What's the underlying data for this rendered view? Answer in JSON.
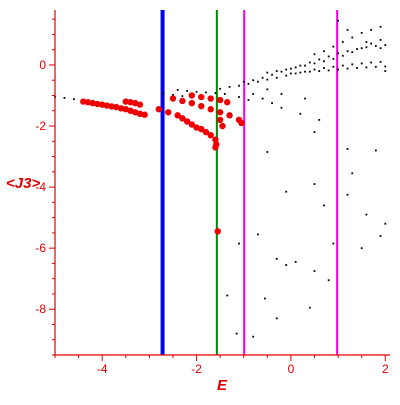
{
  "chart_data": {
    "type": "scatter",
    "xlabel": "E",
    "ylabel": "<J3>",
    "xlim": [
      -5,
      2.1
    ],
    "ylim": [
      -9.5,
      1.8
    ],
    "x_ticks": [
      "-4",
      "-2",
      "0",
      "2"
    ],
    "y_ticks": [
      "0",
      "-2",
      "-4",
      "-6",
      "-8"
    ],
    "grid": false,
    "colors": {
      "axis": "#e00000",
      "black_points": "#000000",
      "red_points": "#ee0000",
      "line_blue": "#0000ee",
      "line_green": "#008800",
      "line_magenta": "#ee00ee"
    },
    "vertical_lines": [
      {
        "x": -2.72,
        "color": "#0000ee",
        "width": "thick"
      },
      {
        "x": -1.57,
        "color": "#008800",
        "width": "medium"
      },
      {
        "x": -0.99,
        "color": "#ee00ee",
        "width": "medium"
      },
      {
        "x": 0.98,
        "color": "#ee00ee",
        "width": "medium"
      }
    ],
    "series": [
      {
        "color": "#000000",
        "marker": "small",
        "points": [
          [
            -5.0,
            -1.05
          ],
          [
            -4.8,
            -1.08
          ],
          [
            -4.6,
            -1.12
          ],
          [
            -4.4,
            -1.15
          ],
          [
            -4.2,
            -1.18
          ],
          [
            -2.7,
            -0.93
          ],
          [
            -2.5,
            -0.98
          ],
          [
            -2.3,
            -1.02
          ],
          [
            -2.1,
            -1.06
          ],
          [
            -1.9,
            -1.1
          ],
          [
            -1.7,
            -1.12
          ],
          [
            -2.4,
            -0.82
          ],
          [
            -2.2,
            -0.85
          ],
          [
            -2.0,
            -0.88
          ],
          [
            -1.8,
            -0.9
          ],
          [
            -1.6,
            -0.92
          ],
          [
            -1.4,
            -0.95
          ],
          [
            -1.5,
            -0.78
          ],
          [
            -1.3,
            -0.72
          ],
          [
            -1.1,
            -0.68
          ],
          [
            -0.9,
            -0.62
          ],
          [
            -0.7,
            -0.55
          ],
          [
            -0.5,
            -0.48
          ],
          [
            -0.3,
            -0.42
          ],
          [
            -0.1,
            -0.35
          ],
          [
            0.1,
            -0.28
          ],
          [
            0.3,
            -0.22
          ],
          [
            0.5,
            -0.15
          ],
          [
            0.7,
            -0.1
          ],
          [
            0.9,
            -0.06
          ],
          [
            1.1,
            -0.02
          ],
          [
            1.3,
            0.02
          ],
          [
            1.5,
            0.05
          ],
          [
            1.7,
            0.08
          ],
          [
            1.9,
            0.1
          ],
          [
            -1.0,
            -0.55
          ],
          [
            -0.8,
            -0.5
          ],
          [
            -0.6,
            -0.42
          ],
          [
            -0.4,
            -0.32
          ],
          [
            -0.2,
            -0.22
          ],
          [
            0.0,
            -0.12
          ],
          [
            0.2,
            -0.02
          ],
          [
            0.4,
            0.08
          ],
          [
            0.6,
            0.18
          ],
          [
            0.8,
            0.28
          ],
          [
            1.0,
            0.38
          ],
          [
            1.2,
            0.45
          ],
          [
            1.4,
            0.52
          ],
          [
            1.6,
            0.58
          ],
          [
            1.8,
            0.62
          ],
          [
            2.0,
            0.65
          ],
          [
            -0.5,
            -0.25
          ],
          [
            -0.3,
            -0.2
          ],
          [
            -0.1,
            -0.15
          ],
          [
            0.1,
            -0.08
          ],
          [
            0.3,
            -0.02
          ],
          [
            0.5,
            0.05
          ],
          [
            0.7,
            0.12
          ],
          [
            0.9,
            0.2
          ],
          [
            1.1,
            0.3
          ],
          [
            1.3,
            0.42
          ],
          [
            1.5,
            0.55
          ],
          [
            1.7,
            0.7
          ],
          [
            1.9,
            0.82
          ],
          [
            0.0,
            -0.28
          ],
          [
            0.2,
            -0.25
          ],
          [
            0.4,
            -0.22
          ],
          [
            0.6,
            -0.2
          ],
          [
            0.8,
            -0.18
          ],
          [
            1.0,
            -0.15
          ],
          [
            1.2,
            -0.12
          ],
          [
            1.4,
            -0.1
          ],
          [
            1.6,
            -0.08
          ],
          [
            1.8,
            -0.06
          ],
          [
            2.0,
            -0.05
          ],
          [
            0.5,
            0.35
          ],
          [
            0.7,
            0.45
          ],
          [
            0.9,
            0.6
          ],
          [
            1.1,
            0.75
          ],
          [
            1.3,
            0.9
          ],
          [
            1.5,
            1.05
          ],
          [
            1.7,
            1.15
          ],
          [
            1.9,
            1.25
          ],
          [
            1.0,
            1.45
          ],
          [
            1.2,
            1.15
          ],
          [
            1.6,
            0.75
          ],
          [
            1.9,
            0.55
          ],
          [
            2.0,
            -0.2
          ],
          [
            -0.8,
            -0.95
          ],
          [
            -0.6,
            -1.1
          ],
          [
            -0.4,
            -1.25
          ],
          [
            -0.2,
            -1.4
          ],
          [
            0.2,
            -1.6
          ],
          [
            0.6,
            -1.8
          ],
          [
            -1.1,
            -1.05
          ],
          [
            -0.9,
            -1.15
          ],
          [
            -0.5,
            -0.8
          ],
          [
            -0.2,
            -0.95
          ],
          [
            0.3,
            -1.1
          ],
          [
            -0.5,
            -2.85
          ],
          [
            0.5,
            -2.2
          ],
          [
            1.2,
            -2.75
          ],
          [
            1.8,
            -2.8
          ],
          [
            1.3,
            -3.55
          ],
          [
            -0.1,
            -4.15
          ],
          [
            0.5,
            -3.9
          ],
          [
            0.7,
            -4.6
          ],
          [
            1.2,
            -4.25
          ],
          [
            1.6,
            -4.9
          ],
          [
            2.0,
            -5.2
          ],
          [
            -1.1,
            -5.85
          ],
          [
            -0.7,
            -5.55
          ],
          [
            -0.3,
            -6.35
          ],
          [
            -0.1,
            -6.55
          ],
          [
            0.1,
            -6.45
          ],
          [
            0.5,
            -6.75
          ],
          [
            0.9,
            -5.85
          ],
          [
            1.5,
            -6.0
          ],
          [
            1.9,
            -5.6
          ],
          [
            -1.35,
            -7.55
          ],
          [
            -0.55,
            -7.65
          ],
          [
            0.8,
            -7.05
          ],
          [
            -1.15,
            -8.8
          ],
          [
            -0.8,
            -8.9
          ],
          [
            -0.3,
            -8.3
          ],
          [
            0.4,
            -7.95
          ]
        ]
      },
      {
        "color": "#ee0000",
        "marker": "large",
        "points": [
          [
            -4.4,
            -1.2
          ],
          [
            -4.3,
            -1.22
          ],
          [
            -4.2,
            -1.25
          ],
          [
            -4.1,
            -1.28
          ],
          [
            -4.0,
            -1.3
          ],
          [
            -3.9,
            -1.33
          ],
          [
            -3.8,
            -1.36
          ],
          [
            -3.7,
            -1.38
          ],
          [
            -3.6,
            -1.42
          ],
          [
            -3.5,
            -1.45
          ],
          [
            -3.4,
            -1.5
          ],
          [
            -3.3,
            -1.55
          ],
          [
            -3.2,
            -1.6
          ],
          [
            -3.1,
            -1.63
          ],
          [
            -3.5,
            -1.2
          ],
          [
            -3.4,
            -1.22
          ],
          [
            -3.3,
            -1.25
          ],
          [
            -3.2,
            -1.3
          ],
          [
            -2.8,
            -1.45
          ],
          [
            -2.6,
            -1.55
          ],
          [
            -2.4,
            -1.65
          ],
          [
            -2.3,
            -1.75
          ],
          [
            -2.2,
            -1.85
          ],
          [
            -2.1,
            -1.95
          ],
          [
            -2.0,
            -2.05
          ],
          [
            -1.9,
            -2.1
          ],
          [
            -1.8,
            -2.2
          ],
          [
            -1.7,
            -2.3
          ],
          [
            -1.6,
            -2.45
          ],
          [
            -1.58,
            -2.6
          ],
          [
            -2.5,
            -1.1
          ],
          [
            -2.3,
            -1.18
          ],
          [
            -2.1,
            -1.25
          ],
          [
            -1.9,
            -1.35
          ],
          [
            -1.7,
            -1.45
          ],
          [
            -1.5,
            -1.55
          ],
          [
            -1.3,
            -1.65
          ],
          [
            -1.1,
            -1.8
          ],
          [
            -1.05,
            -1.9
          ],
          [
            -2.1,
            -1.0
          ],
          [
            -1.9,
            -1.05
          ],
          [
            -1.7,
            -1.1
          ],
          [
            -1.5,
            -1.15
          ],
          [
            -1.35,
            -1.22
          ],
          [
            -1.5,
            -1.8
          ],
          [
            -1.45,
            -2.0
          ],
          [
            -1.6,
            -2.7
          ],
          [
            -1.55,
            -5.45
          ]
        ]
      }
    ]
  }
}
